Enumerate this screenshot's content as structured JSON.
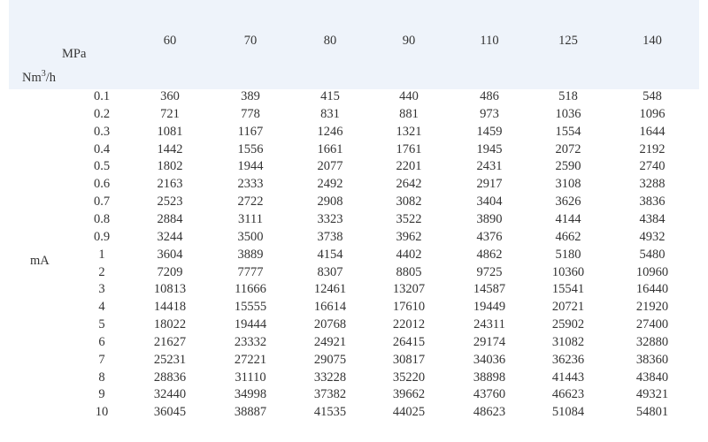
{
  "table": {
    "corner_top": "MPa",
    "corner_bottom": "Nm",
    "corner_bottom_sup": "3",
    "corner_bottom_suffix": "/h",
    "row_group_label": "mA",
    "columns": [
      "60",
      "70",
      "80",
      "90",
      "110",
      "125",
      "140"
    ],
    "rows": [
      {
        "label": "0.1",
        "values": [
          "360",
          "389",
          "415",
          "440",
          "486",
          "518",
          "548"
        ]
      },
      {
        "label": "0.2",
        "values": [
          "721",
          "778",
          "831",
          "881",
          "973",
          "1036",
          "1096"
        ]
      },
      {
        "label": "0.3",
        "values": [
          "1081",
          "1167",
          "1246",
          "1321",
          "1459",
          "1554",
          "1644"
        ]
      },
      {
        "label": "0.4",
        "values": [
          "1442",
          "1556",
          "1661",
          "1761",
          "1945",
          "2072",
          "2192"
        ]
      },
      {
        "label": "0.5",
        "values": [
          "1802",
          "1944",
          "2077",
          "2201",
          "2431",
          "2590",
          "2740"
        ]
      },
      {
        "label": "0.6",
        "values": [
          "2163",
          "2333",
          "2492",
          "2642",
          "2917",
          "3108",
          "3288"
        ]
      },
      {
        "label": "0.7",
        "values": [
          "2523",
          "2722",
          "2908",
          "3082",
          "3404",
          "3626",
          "3836"
        ]
      },
      {
        "label": "0.8",
        "values": [
          "2884",
          "3111",
          "3323",
          "3522",
          "3890",
          "4144",
          "4384"
        ]
      },
      {
        "label": "0.9",
        "values": [
          "3244",
          "3500",
          "3738",
          "3962",
          "4376",
          "4662",
          "4932"
        ]
      },
      {
        "label": "1",
        "values": [
          "3604",
          "3889",
          "4154",
          "4402",
          "4862",
          "5180",
          "5480"
        ]
      },
      {
        "label": "2",
        "values": [
          "7209",
          "7777",
          "8307",
          "8805",
          "9725",
          "10360",
          "10960"
        ]
      },
      {
        "label": "3",
        "values": [
          "10813",
          "11666",
          "12461",
          "13207",
          "14587",
          "15541",
          "16440"
        ]
      },
      {
        "label": "4",
        "values": [
          "14418",
          "15555",
          "16614",
          "17610",
          "19449",
          "20721",
          "21920"
        ]
      },
      {
        "label": "5",
        "values": [
          "18022",
          "19444",
          "20768",
          "22012",
          "24311",
          "25902",
          "27400"
        ]
      },
      {
        "label": "6",
        "values": [
          "21627",
          "23332",
          "24921",
          "26415",
          "29174",
          "31082",
          "32880"
        ]
      },
      {
        "label": "7",
        "values": [
          "25231",
          "27221",
          "29075",
          "30817",
          "34036",
          "36236",
          "38360"
        ]
      },
      {
        "label": "8",
        "values": [
          "28836",
          "31110",
          "33228",
          "35220",
          "38898",
          "41443",
          "43840"
        ]
      },
      {
        "label": "9",
        "values": [
          "32440",
          "34998",
          "37382",
          "39662",
          "43760",
          "46623",
          "49321"
        ]
      },
      {
        "label": "10",
        "values": [
          "36045",
          "38887",
          "41535",
          "44025",
          "48623",
          "51084",
          "54801"
        ]
      }
    ]
  },
  "colors": {
    "header_bg": "#eef3fa",
    "text": "#333333"
  }
}
